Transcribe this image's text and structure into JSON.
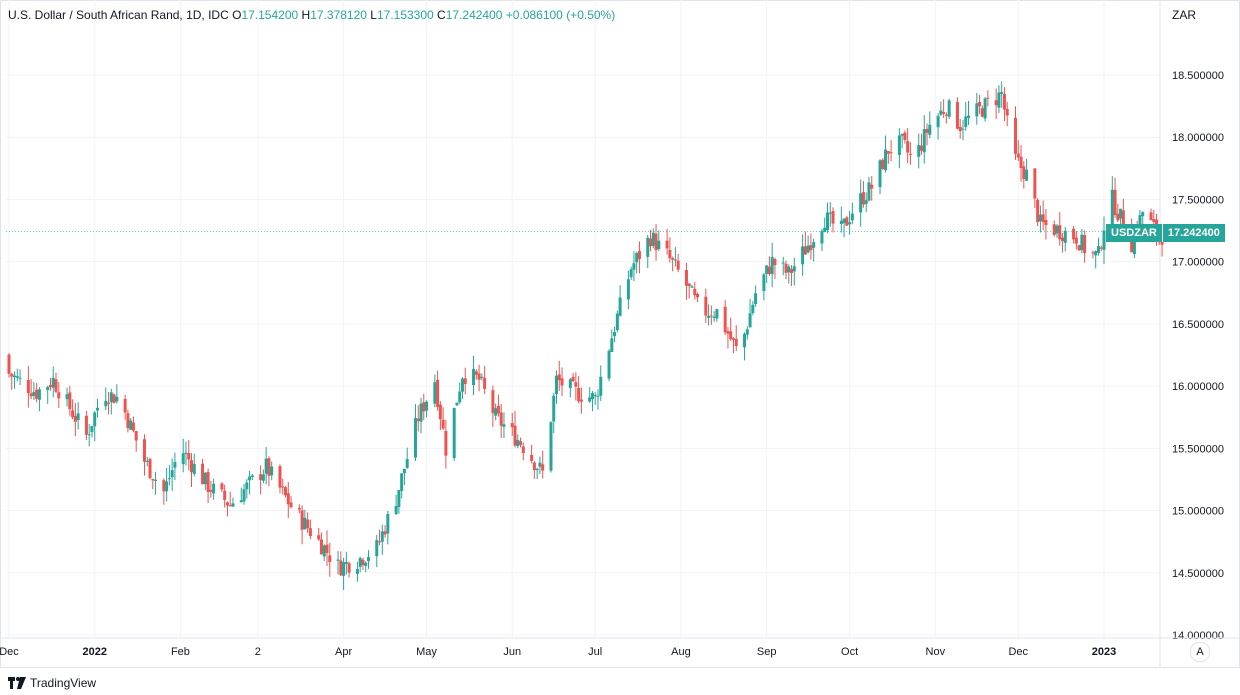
{
  "legend": {
    "title": "U.S. Dollar / South African Rand, 1D, IDC",
    "o_key": "O",
    "o_val": "17.154200",
    "h_key": "H",
    "h_val": "17.378120",
    "l_key": "L",
    "l_val": "17.153300",
    "c_key": "C",
    "c_val": "17.242400",
    "change": "+0.086100 (+0.50%)"
  },
  "currency": "ZAR",
  "price_tag": {
    "symbol": "USDZAR",
    "value": "17.242400"
  },
  "auto_button": "A",
  "footer": {
    "brand": "TradingView"
  },
  "colors": {
    "up": "#26a69a",
    "down": "#ef5350",
    "grid": "#f0f3fa",
    "axis_border": "#e0e3eb"
  },
  "chart_data": {
    "type": "candlestick",
    "y_axis": {
      "min": 14.0,
      "max": 18.5,
      "ticks": [
        "14.000000",
        "14.500000",
        "15.000000",
        "15.500000",
        "16.000000",
        "16.500000",
        "17.000000",
        "17.500000",
        "18.000000",
        "18.500000"
      ],
      "tick_values": [
        14.0,
        14.5,
        15.0,
        15.5,
        16.0,
        16.5,
        17.0,
        17.5,
        18.0,
        18.5
      ]
    },
    "x_axis": {
      "ticks": [
        {
          "label": "Dec",
          "day": 0
        },
        {
          "label": "2022",
          "day": 31,
          "year": true
        },
        {
          "label": "Feb",
          "day": 62
        },
        {
          "label": "2",
          "day": 90
        },
        {
          "label": "Apr",
          "day": 121
        },
        {
          "label": "May",
          "day": 151
        },
        {
          "label": "Jun",
          "day": 182
        },
        {
          "label": "Jul",
          "day": 212
        },
        {
          "label": "Aug",
          "day": 243
        },
        {
          "label": "Sep",
          "day": 274
        },
        {
          "label": "Oct",
          "day": 304
        },
        {
          "label": "Nov",
          "day": 335
        },
        {
          "label": "Dec",
          "day": 365
        },
        {
          "label": "2023",
          "day": 396,
          "year": true
        }
      ]
    },
    "anchors": [
      {
        "day": 0,
        "close": 16.1
      },
      {
        "day": 10,
        "close": 15.95
      },
      {
        "day": 16,
        "close": 16.05
      },
      {
        "day": 28,
        "close": 15.6
      },
      {
        "day": 34,
        "close": 15.95
      },
      {
        "day": 40,
        "close": 15.9
      },
      {
        "day": 49,
        "close": 15.4
      },
      {
        "day": 56,
        "close": 15.15
      },
      {
        "day": 62,
        "close": 15.5
      },
      {
        "day": 72,
        "close": 15.2
      },
      {
        "day": 80,
        "close": 15.05
      },
      {
        "day": 93,
        "close": 15.35
      },
      {
        "day": 103,
        "close": 15.0
      },
      {
        "day": 114,
        "close": 14.7
      },
      {
        "day": 119,
        "close": 14.55
      },
      {
        "day": 126,
        "close": 14.6
      },
      {
        "day": 133,
        "close": 14.7
      },
      {
        "day": 140,
        "close": 15.1
      },
      {
        "day": 148,
        "close": 15.75
      },
      {
        "day": 154,
        "close": 16.05
      },
      {
        "day": 158,
        "close": 15.5
      },
      {
        "day": 164,
        "close": 16.1
      },
      {
        "day": 170,
        "close": 16.05
      },
      {
        "day": 176,
        "close": 15.75
      },
      {
        "day": 185,
        "close": 15.55
      },
      {
        "day": 193,
        "close": 15.3
      },
      {
        "day": 198,
        "close": 16.05
      },
      {
        "day": 205,
        "close": 15.95
      },
      {
        "day": 212,
        "close": 15.9
      },
      {
        "day": 218,
        "close": 16.4
      },
      {
        "day": 225,
        "close": 16.95
      },
      {
        "day": 232,
        "close": 17.2
      },
      {
        "day": 238,
        "close": 17.05
      },
      {
        "day": 244,
        "close": 16.85
      },
      {
        "day": 250,
        "close": 16.6
      },
      {
        "day": 256,
        "close": 16.6
      },
      {
        "day": 264,
        "close": 16.25
      },
      {
        "day": 270,
        "close": 16.75
      },
      {
        "day": 276,
        "close": 17.0
      },
      {
        "day": 282,
        "close": 16.9
      },
      {
        "day": 288,
        "close": 17.1
      },
      {
        "day": 295,
        "close": 17.35
      },
      {
        "day": 301,
        "close": 17.25
      },
      {
        "day": 306,
        "close": 17.45
      },
      {
        "day": 312,
        "close": 17.6
      },
      {
        "day": 318,
        "close": 17.9
      },
      {
        "day": 323,
        "close": 17.95
      },
      {
        "day": 327,
        "close": 17.8
      },
      {
        "day": 333,
        "close": 18.1
      },
      {
        "day": 339,
        "close": 18.25
      },
      {
        "day": 344,
        "close": 18.1
      },
      {
        "day": 350,
        "close": 18.2
      },
      {
        "day": 356,
        "close": 18.3
      },
      {
        "day": 359,
        "close": 18.35
      },
      {
        "day": 363,
        "close": 17.85
      },
      {
        "day": 368,
        "close": 17.7
      },
      {
        "day": 373,
        "close": 17.3
      },
      {
        "day": 380,
        "close": 17.25
      },
      {
        "day": 386,
        "close": 17.2
      },
      {
        "day": 391,
        "close": 17.05
      },
      {
        "day": 394,
        "close": 17.05
      },
      {
        "day": 398,
        "close": 17.55
      },
      {
        "day": 403,
        "close": 17.3
      },
      {
        "day": 406,
        "close": 17.15
      },
      {
        "day": 410,
        "close": 17.4
      },
      {
        "day": 416,
        "close": 17.2
      },
      {
        "day": 419,
        "close": 17.242
      }
    ]
  }
}
